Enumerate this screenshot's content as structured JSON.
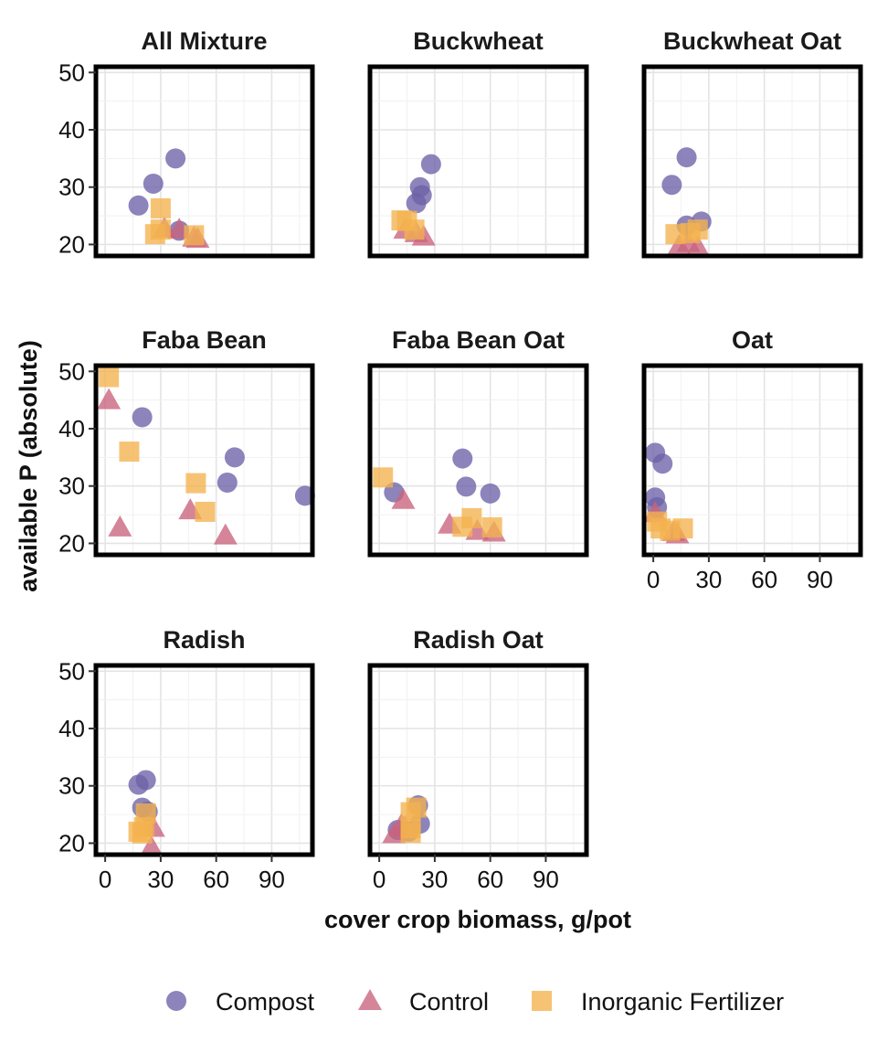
{
  "chart_data": {
    "type": "scatter",
    "xlabel": "cover crop biomass, g/pot",
    "ylabel": "available P (absolute)",
    "xlim": [
      -5,
      112
    ],
    "ylim": [
      18,
      51
    ],
    "xticks": [
      0,
      30,
      60,
      90
    ],
    "yticks": [
      20,
      30,
      40,
      50
    ],
    "grid": true,
    "facet_layout": "3 columns, 3 rows, shared axes",
    "legend_position": "bottom",
    "legend": [
      {
        "name": "Compost",
        "shape": "circle",
        "color": "#6b62a6"
      },
      {
        "name": "Control",
        "shape": "triangle",
        "color": "#c9637c"
      },
      {
        "name": "Inorganic Fertilizer",
        "shape": "square",
        "color": "#f4b24e"
      }
    ],
    "panels": [
      {
        "title": "All Mixture",
        "series": [
          {
            "name": "Compost",
            "points": [
              [
                18,
                26.8
              ],
              [
                26,
                30.6
              ],
              [
                38,
                35
              ],
              [
                40,
                22.4
              ]
            ]
          },
          {
            "name": "Control",
            "points": [
              [
                32,
                22.8
              ],
              [
                40,
                22.6
              ],
              [
                48,
                21.2
              ],
              [
                50,
                21
              ]
            ]
          },
          {
            "name": "Inorganic Fertilizer",
            "points": [
              [
                27,
                21.8
              ],
              [
                30,
                26.3
              ],
              [
                30,
                22.6
              ],
              [
                48,
                21.6
              ]
            ]
          }
        ]
      },
      {
        "title": "Buckwheat",
        "series": [
          {
            "name": "Compost",
            "points": [
              [
                20,
                27.2
              ],
              [
                22,
                30
              ],
              [
                23,
                28.6
              ],
              [
                28,
                34
              ]
            ]
          },
          {
            "name": "Control",
            "points": [
              [
                14,
                22.6
              ],
              [
                20,
                22
              ],
              [
                24,
                21.4
              ]
            ]
          },
          {
            "name": "Inorganic Fertilizer",
            "points": [
              [
                12,
                24.2
              ],
              [
                15,
                24.1
              ],
              [
                19,
                22.6
              ]
            ]
          }
        ]
      },
      {
        "title": "Buckwheat Oat",
        "series": [
          {
            "name": "Compost",
            "points": [
              [
                10,
                30.4
              ],
              [
                18,
                35.2
              ],
              [
                18,
                23.3
              ],
              [
                26,
                24
              ]
            ]
          },
          {
            "name": "Control",
            "points": [
              [
                14,
                19.8
              ],
              [
                19,
                20.3
              ],
              [
                24,
                19.6
              ]
            ]
          },
          {
            "name": "Inorganic Fertilizer",
            "points": [
              [
                12,
                21.8
              ],
              [
                20,
                22
              ],
              [
                24,
                22.6
              ]
            ]
          }
        ]
      },
      {
        "title": "Faba Bean",
        "series": [
          {
            "name": "Compost",
            "points": [
              [
                20,
                42
              ],
              [
                66,
                30.6
              ],
              [
                70,
                35
              ],
              [
                108,
                28.3
              ]
            ]
          },
          {
            "name": "Control",
            "points": [
              [
                2,
                45
              ],
              [
                8,
                22.8
              ],
              [
                46,
                25.8
              ],
              [
                65,
                21.4
              ]
            ]
          },
          {
            "name": "Inorganic Fertilizer",
            "points": [
              [
                2,
                49
              ],
              [
                13,
                36
              ],
              [
                49,
                30.5
              ],
              [
                54,
                25.5
              ]
            ]
          }
        ]
      },
      {
        "title": "Faba Bean Oat",
        "series": [
          {
            "name": "Compost",
            "points": [
              [
                8,
                28.9
              ],
              [
                45,
                34.8
              ],
              [
                47,
                29.9
              ],
              [
                60,
                28.7
              ]
            ]
          },
          {
            "name": "Control",
            "points": [
              [
                13,
                27.6
              ],
              [
                38,
                23.3
              ],
              [
                53,
                22.2
              ],
              [
                62,
                21.9
              ]
            ]
          },
          {
            "name": "Inorganic Fertilizer",
            "points": [
              [
                2,
                31.5
              ],
              [
                45,
                22.9
              ],
              [
                50,
                24.4
              ],
              [
                61,
                22.8
              ]
            ]
          }
        ]
      },
      {
        "title": "Oat",
        "series": [
          {
            "name": "Compost",
            "points": [
              [
                1,
                35.8
              ],
              [
                1,
                28
              ],
              [
                2,
                26.3
              ],
              [
                5,
                33.9
              ]
            ]
          },
          {
            "name": "Control",
            "points": [
              [
                1,
                25.3
              ],
              [
                11,
                22
              ],
              [
                13,
                21.6
              ]
            ]
          },
          {
            "name": "Inorganic Fertilizer",
            "points": [
              [
                2,
                23.8
              ],
              [
                4,
                22.6
              ],
              [
                9,
                22.2
              ],
              [
                16,
                22.6
              ]
            ]
          }
        ]
      },
      {
        "title": "Radish",
        "series": [
          {
            "name": "Compost",
            "points": [
              [
                18,
                30.2
              ],
              [
                22,
                31
              ],
              [
                20,
                26.2
              ],
              [
                23,
                25.5
              ]
            ]
          },
          {
            "name": "Control",
            "points": [
              [
                26,
                22.7
              ],
              [
                25,
                19.3
              ]
            ]
          },
          {
            "name": "Inorganic Fertilizer",
            "points": [
              [
                18,
                22
              ],
              [
                20,
                21.7
              ],
              [
                22,
                25.2
              ],
              [
                21,
                22.8
              ]
            ]
          }
        ]
      },
      {
        "title": "Radish Oat",
        "series": [
          {
            "name": "Compost",
            "points": [
              [
                10,
                22.3
              ],
              [
                21,
                26.6
              ],
              [
                22,
                23.4
              ],
              [
                16,
                22
              ]
            ]
          },
          {
            "name": "Control",
            "points": [
              [
                8,
                21.6
              ],
              [
                12,
                23.2
              ],
              [
                14,
                22.8
              ]
            ]
          },
          {
            "name": "Inorganic Fertilizer",
            "points": [
              [
                17,
                25.4
              ],
              [
                20,
                26.2
              ],
              [
                17,
                22.6
              ],
              [
                17,
                21.8
              ]
            ]
          }
        ]
      }
    ]
  }
}
